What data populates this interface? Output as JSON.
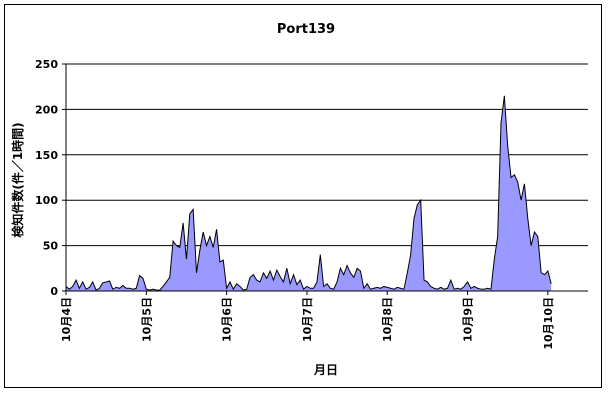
{
  "chart_data": {
    "type": "area",
    "title": "Port139",
    "xlabel": "月日",
    "ylabel": "検知件数(件／1時間)",
    "ylim": [
      0,
      250
    ],
    "yticks": [
      0,
      50,
      100,
      150,
      200,
      250
    ],
    "grid": true,
    "legend": "none",
    "fill_color": "#9999ff",
    "line_color": "#000000",
    "x_unit": "hour",
    "x_start_label": "10月4日",
    "x_range_hours": [
      0,
      156
    ],
    "x_tick_labels": [
      "10月4日",
      "10月5日",
      "10月6日",
      "10月7日",
      "10月8日",
      "10月9日",
      "10月10日"
    ],
    "x_tick_hours": [
      0,
      24,
      48,
      72,
      96,
      120,
      144
    ],
    "series": [
      {
        "points": [
          [
            0,
            5
          ],
          [
            1,
            2
          ],
          [
            2,
            5
          ],
          [
            3,
            12
          ],
          [
            4,
            3
          ],
          [
            5,
            10
          ],
          [
            6,
            2
          ],
          [
            7,
            4
          ],
          [
            8,
            10
          ],
          [
            9,
            1
          ],
          [
            10,
            3
          ],
          [
            11,
            9
          ],
          [
            12,
            10
          ],
          [
            13,
            11
          ],
          [
            14,
            2
          ],
          [
            15,
            4
          ],
          [
            16,
            3
          ],
          [
            17,
            6
          ],
          [
            18,
            3
          ],
          [
            19,
            3
          ],
          [
            20,
            2
          ],
          [
            21,
            3
          ],
          [
            22,
            17
          ],
          [
            23,
            14
          ],
          [
            24,
            2
          ],
          [
            25,
            1
          ],
          [
            26,
            2
          ],
          [
            27,
            1
          ],
          [
            28,
            1
          ],
          [
            29,
            5
          ],
          [
            30,
            10
          ],
          [
            31,
            15
          ],
          [
            32,
            55
          ],
          [
            33,
            50
          ],
          [
            34,
            48
          ],
          [
            35,
            75
          ],
          [
            36,
            35
          ],
          [
            37,
            85
          ],
          [
            38,
            90
          ],
          [
            39,
            20
          ],
          [
            40,
            45
          ],
          [
            41,
            65
          ],
          [
            42,
            50
          ],
          [
            43,
            60
          ],
          [
            44,
            48
          ],
          [
            45,
            68
          ],
          [
            46,
            32
          ],
          [
            47,
            34
          ],
          [
            48,
            3
          ],
          [
            49,
            10
          ],
          [
            50,
            2
          ],
          [
            51,
            8
          ],
          [
            52,
            5
          ],
          [
            53,
            1
          ],
          [
            54,
            2
          ],
          [
            55,
            15
          ],
          [
            56,
            18
          ],
          [
            57,
            12
          ],
          [
            58,
            10
          ],
          [
            59,
            20
          ],
          [
            60,
            14
          ],
          [
            61,
            22
          ],
          [
            62,
            12
          ],
          [
            63,
            23
          ],
          [
            64,
            16
          ],
          [
            65,
            10
          ],
          [
            66,
            25
          ],
          [
            67,
            8
          ],
          [
            68,
            18
          ],
          [
            69,
            7
          ],
          [
            70,
            12
          ],
          [
            71,
            2
          ],
          [
            72,
            5
          ],
          [
            73,
            3
          ],
          [
            74,
            3
          ],
          [
            75,
            10
          ],
          [
            76,
            40
          ],
          [
            77,
            5
          ],
          [
            78,
            8
          ],
          [
            79,
            3
          ],
          [
            80,
            2
          ],
          [
            81,
            10
          ],
          [
            82,
            25
          ],
          [
            83,
            18
          ],
          [
            84,
            28
          ],
          [
            85,
            20
          ],
          [
            86,
            15
          ],
          [
            87,
            25
          ],
          [
            88,
            22
          ],
          [
            89,
            3
          ],
          [
            90,
            8
          ],
          [
            91,
            2
          ],
          [
            92,
            3
          ],
          [
            93,
            4
          ],
          [
            94,
            3
          ],
          [
            95,
            5
          ],
          [
            96,
            4
          ],
          [
            97,
            3
          ],
          [
            98,
            2
          ],
          [
            99,
            4
          ],
          [
            100,
            3
          ],
          [
            101,
            2
          ],
          [
            102,
            20
          ],
          [
            103,
            40
          ],
          [
            104,
            80
          ],
          [
            105,
            95
          ],
          [
            106,
            100
          ],
          [
            107,
            12
          ],
          [
            108,
            10
          ],
          [
            109,
            5
          ],
          [
            110,
            3
          ],
          [
            111,
            2
          ],
          [
            112,
            4
          ],
          [
            113,
            2
          ],
          [
            114,
            3
          ],
          [
            115,
            12
          ],
          [
            116,
            2
          ],
          [
            117,
            3
          ],
          [
            118,
            2
          ],
          [
            119,
            5
          ],
          [
            120,
            10
          ],
          [
            121,
            3
          ],
          [
            122,
            5
          ],
          [
            123,
            3
          ],
          [
            124,
            2
          ],
          [
            125,
            2
          ],
          [
            126,
            3
          ],
          [
            127,
            2
          ],
          [
            128,
            35
          ],
          [
            129,
            60
          ],
          [
            130,
            185
          ],
          [
            131,
            215
          ],
          [
            132,
            160
          ],
          [
            133,
            125
          ],
          [
            134,
            128
          ],
          [
            135,
            120
          ],
          [
            136,
            100
          ],
          [
            137,
            118
          ],
          [
            138,
            80
          ],
          [
            139,
            50
          ],
          [
            140,
            65
          ],
          [
            141,
            60
          ],
          [
            142,
            20
          ],
          [
            143,
            18
          ],
          [
            144,
            22
          ],
          [
            145,
            8
          ]
        ]
      }
    ]
  }
}
